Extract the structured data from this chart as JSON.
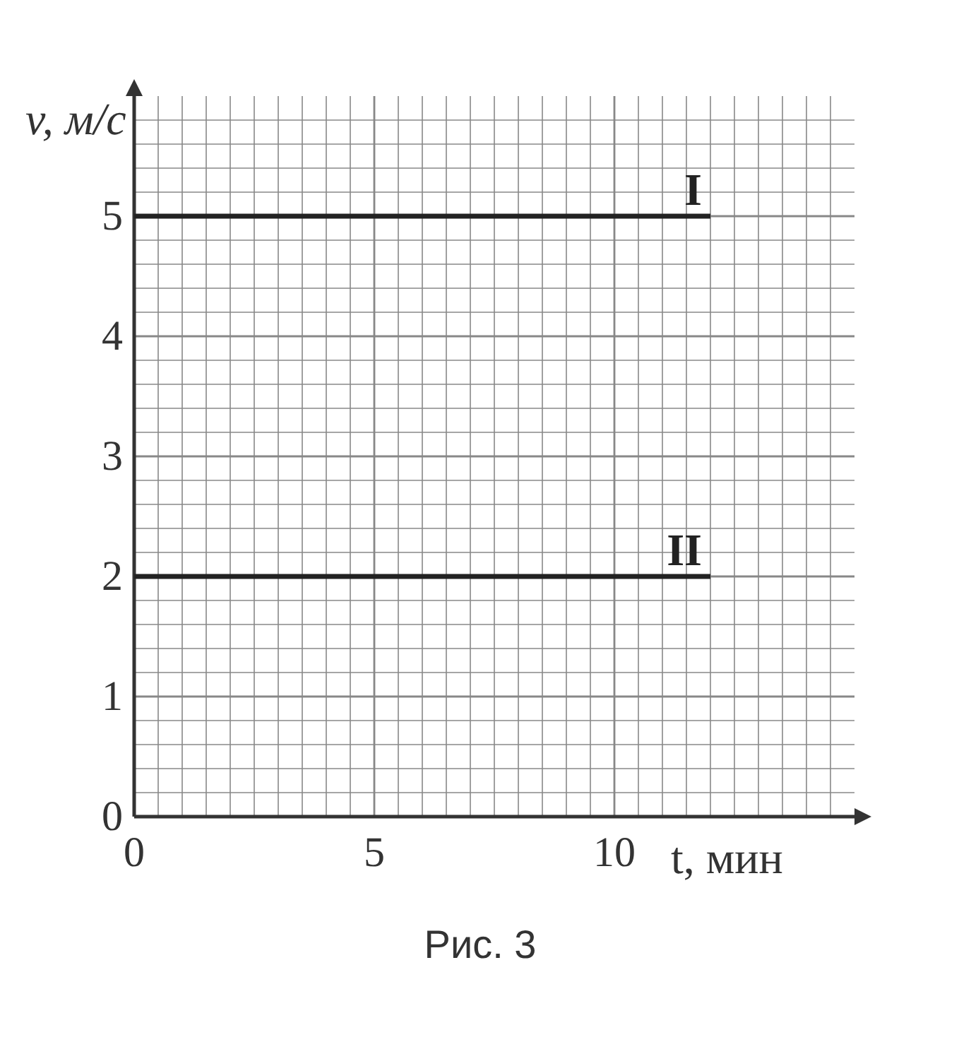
{
  "chart_data": {
    "type": "line",
    "xlabel": "t, мин",
    "ylabel": "v, м/с",
    "annotations": [
      "Рис. 3"
    ],
    "x": [
      0,
      12
    ],
    "series": [
      {
        "name": "I",
        "color": "#222222",
        "values": [
          5,
          5
        ]
      },
      {
        "name": "II",
        "color": "#222222",
        "values": [
          2,
          2
        ]
      }
    ],
    "xlim": [
      0,
      15
    ],
    "ylim": [
      0,
      6
    ],
    "grid": true,
    "marker": "none",
    "line_style": "solid",
    "xticks": [
      0,
      {
        "value": 0.5,
        "label": null
      },
      {
        "value": 1,
        "label": null
      },
      {
        "value": 1.5,
        "label": null
      },
      {
        "value": 2,
        "label": null
      },
      {
        "value": 2.5,
        "label": null
      },
      {
        "value": 3,
        "label": null
      },
      {
        "value": 3.5,
        "label": null
      },
      {
        "value": 4,
        "label": null
      },
      {
        "value": 4.5,
        "label": null
      },
      5,
      {
        "value": 5.5,
        "label": null
      },
      {
        "value": 6,
        "label": null
      },
      {
        "value": 6.5,
        "label": null
      },
      {
        "value": 7,
        "label": null
      },
      {
        "value": 7.5,
        "label": null
      },
      {
        "value": 8,
        "label": null
      },
      {
        "value": 8.5,
        "label": null
      },
      {
        "value": 9,
        "label": null
      },
      {
        "value": 9.5,
        "label": null
      },
      10,
      {
        "value": 10.5,
        "label": null
      },
      {
        "value": 11,
        "label": null
      },
      {
        "value": 11.5,
        "label": null
      },
      {
        "value": 12,
        "label": null
      },
      {
        "value": 12.5,
        "label": null
      },
      {
        "value": 13,
        "label": null
      },
      {
        "value": 13.5,
        "label": null
      },
      {
        "value": 14,
        "label": null
      },
      {
        "value": 14.5,
        "label": null
      }
    ],
    "yticks": [
      0,
      {
        "value": 0.2,
        "label": null
      },
      {
        "value": 0.4,
        "label": null
      },
      {
        "value": 0.6,
        "label": null
      },
      {
        "value": 0.8,
        "label": null
      },
      1,
      {
        "value": 1.2,
        "label": null
      },
      {
        "value": 1.4,
        "label": null
      },
      {
        "value": 1.6,
        "label": null
      },
      {
        "value": 1.8,
        "label": null
      },
      2,
      {
        "value": 2.2,
        "label": null
      },
      {
        "value": 2.4,
        "label": null
      },
      {
        "value": 2.6,
        "label": null
      },
      {
        "value": 2.8,
        "label": null
      },
      3,
      {
        "value": 3.2,
        "label": null
      },
      {
        "value": 3.4,
        "label": null
      },
      {
        "value": 3.6,
        "label": null
      },
      {
        "value": 3.8,
        "label": null
      },
      4,
      {
        "value": 4.2,
        "label": null
      },
      {
        "value": 4.4,
        "label": null
      },
      {
        "value": 4.6,
        "label": null
      },
      {
        "value": 4.8,
        "label": null
      },
      5,
      {
        "value": 5.2,
        "label": null
      },
      {
        "value": 5.4,
        "label": null
      },
      {
        "value": 5.6,
        "label": null
      },
      {
        "value": 5.8,
        "label": null
      }
    ]
  }
}
